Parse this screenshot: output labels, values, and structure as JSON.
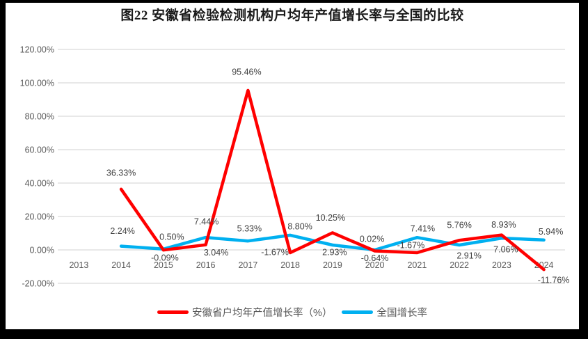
{
  "title": "图22  安徽省检验检测机构户均年产值增长率与全国的比较",
  "chart_data": {
    "type": "line",
    "categories": [
      "2013",
      "2014",
      "2015",
      "2016",
      "2017",
      "2018",
      "2019",
      "2020",
      "2021",
      "2022",
      "2023",
      "2024"
    ],
    "series": [
      {
        "name": "安徽省户均年产值增长率（%）",
        "color": "#FF0000",
        "values": [
          null,
          36.33,
          -0.09,
          3.04,
          95.46,
          -1.67,
          10.25,
          -0.64,
          -1.67,
          5.76,
          8.93,
          -11.76
        ],
        "labels": [
          "",
          "36.33%",
          "-0.09%",
          "3.04%",
          "95.46%",
          "-1.67%",
          "10.25%",
          "-0.64%",
          "-1.67%",
          "5.76%",
          "8.93%",
          "-11.76%"
        ],
        "label_offsets": [
          [
            0,
            0
          ],
          [
            0,
            -24
          ],
          [
            2,
            11
          ],
          [
            15,
            11
          ],
          [
            -2,
            -27
          ],
          [
            -22,
            -1
          ],
          [
            -3,
            -22
          ],
          [
            0,
            10
          ],
          [
            -9,
            -11
          ],
          [
            0,
            -22
          ],
          [
            3,
            -15
          ],
          [
            14,
            15
          ]
        ]
      },
      {
        "name": "全国增长率",
        "color": "#00B0F0",
        "values": [
          null,
          2.24,
          0.5,
          7.44,
          5.33,
          8.8,
          2.93,
          0.02,
          7.41,
          2.91,
          7.06,
          5.94
        ],
        "labels": [
          "",
          "2.24%",
          "0.50%",
          "7.44%",
          "5.33%",
          "8.80%",
          "2.93%",
          "0.02%",
          "7.41%",
          "2.91%",
          "7.06%",
          "5.94%"
        ],
        "label_offsets": [
          [
            0,
            0
          ],
          [
            2,
            -22
          ],
          [
            12,
            -18
          ],
          [
            1,
            -23
          ],
          [
            2,
            -18
          ],
          [
            14,
            -13
          ],
          [
            3,
            10
          ],
          [
            -4,
            -16
          ],
          [
            8,
            -13
          ],
          [
            14,
            15
          ],
          [
            6,
            16
          ],
          [
            10,
            -12
          ]
        ]
      }
    ],
    "y_axis": {
      "ticks": [
        "120.00%",
        "100.00%",
        "80.00%",
        "60.00%",
        "40.00%",
        "20.00%",
        "0.00%",
        "-20.00%"
      ],
      "tick_values": [
        120,
        100,
        80,
        60,
        40,
        20,
        0,
        -20
      ],
      "min": -20,
      "max": 120,
      "step": 20,
      "format": "percent"
    },
    "xlabel": "",
    "ylabel": "",
    "grid": true,
    "legend_position": "bottom",
    "colors": {
      "gridline": "#D9D9D9",
      "axis_text": "#595959",
      "data_label_text": "#404040",
      "title_text": "#1a1a1a",
      "frame": "#000000",
      "background": "#FFFFFF"
    }
  }
}
